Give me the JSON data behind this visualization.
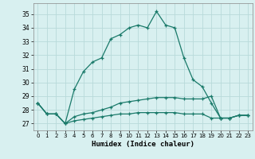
{
  "xlabel": "Humidex (Indice chaleur)",
  "x": [
    0,
    1,
    2,
    3,
    4,
    5,
    6,
    7,
    8,
    9,
    10,
    11,
    12,
    13,
    14,
    15,
    16,
    17,
    18,
    19,
    20,
    21,
    22,
    23
  ],
  "line1": [
    28.5,
    27.7,
    27.7,
    27.0,
    29.5,
    30.8,
    31.5,
    31.8,
    33.2,
    33.5,
    34.0,
    34.2,
    34.0,
    35.2,
    34.2,
    34.0,
    31.8,
    30.2,
    29.7,
    28.5,
    27.4,
    27.4,
    27.6,
    27.6
  ],
  "line2": [
    28.5,
    27.7,
    27.7,
    27.0,
    27.5,
    27.7,
    27.8,
    28.0,
    28.2,
    28.5,
    28.6,
    28.7,
    28.8,
    28.9,
    28.9,
    28.9,
    28.8,
    28.8,
    28.8,
    29.0,
    27.4,
    27.4,
    27.6,
    27.6
  ],
  "line3": [
    28.5,
    27.7,
    27.7,
    27.0,
    27.2,
    27.3,
    27.4,
    27.5,
    27.6,
    27.7,
    27.7,
    27.8,
    27.8,
    27.8,
    27.8,
    27.8,
    27.7,
    27.7,
    27.7,
    27.4,
    27.4,
    27.4,
    27.6,
    27.6
  ],
  "line_color": "#1a7a6a",
  "bg_color": "#d8f0f0",
  "grid_color": "#b8dada",
  "ylim": [
    26.5,
    35.8
  ],
  "yticks": [
    27,
    28,
    29,
    30,
    31,
    32,
    33,
    34,
    35
  ],
  "xlim": [
    -0.5,
    23.5
  ],
  "xticks": [
    0,
    1,
    2,
    3,
    4,
    5,
    6,
    7,
    8,
    9,
    10,
    11,
    12,
    13,
    14,
    15,
    16,
    17,
    18,
    19,
    20,
    21,
    22,
    23
  ]
}
